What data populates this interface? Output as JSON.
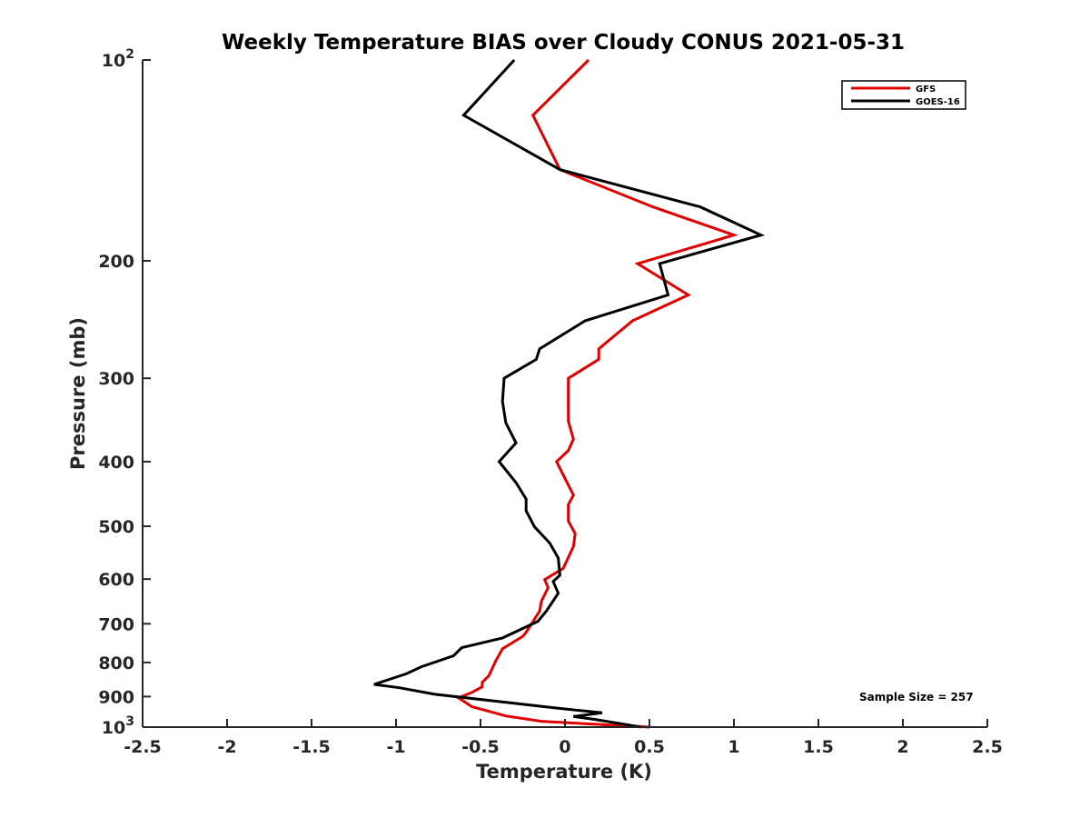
{
  "chart_data": {
    "type": "line",
    "title": "Weekly Temperature BIAS over Cloudy CONUS 2021-05-31",
    "xlabel": "Temperature (K)",
    "ylabel": "Pressure (mb)",
    "xlim": [
      -2.5,
      2.5
    ],
    "ylim": [
      100,
      1000
    ],
    "yscale": "log",
    "yreversed": true,
    "grid": false,
    "legend_position": "top-right",
    "x_ticks": [
      {
        "value": -2.5,
        "label": "-2.5"
      },
      {
        "value": -2,
        "label": "-2"
      },
      {
        "value": -1.5,
        "label": "-1.5"
      },
      {
        "value": -1,
        "label": "-1"
      },
      {
        "value": -0.5,
        "label": "-0.5"
      },
      {
        "value": 0,
        "label": "0"
      },
      {
        "value": 0.5,
        "label": "0.5"
      },
      {
        "value": 1,
        "label": "1"
      },
      {
        "value": 1.5,
        "label": "1.5"
      },
      {
        "value": 2,
        "label": "2"
      },
      {
        "value": 2.5,
        "label": "2.5"
      }
    ],
    "y_ticks": [
      {
        "value": 100,
        "base": "10",
        "exp": "2"
      },
      {
        "value": 200,
        "label": "200"
      },
      {
        "value": 300,
        "label": "300"
      },
      {
        "value": 400,
        "label": "400"
      },
      {
        "value": 500,
        "label": "500"
      },
      {
        "value": 600,
        "label": "600"
      },
      {
        "value": 700,
        "label": "700"
      },
      {
        "value": 800,
        "label": "800"
      },
      {
        "value": 900,
        "label": "900"
      },
      {
        "value": 1000,
        "base": "10",
        "exp": "3"
      }
    ],
    "series": [
      {
        "name": "GFS",
        "color": "#e00000",
        "points": [
          [
            0.14,
            100
          ],
          [
            -0.19,
            121
          ],
          [
            -0.03,
            146
          ],
          [
            0.52,
            166
          ],
          [
            1.0,
            183
          ],
          [
            0.43,
            202
          ],
          [
            0.73,
            225
          ],
          [
            0.4,
            246
          ],
          [
            0.2,
            271
          ],
          [
            0.2,
            281
          ],
          [
            0.02,
            300
          ],
          [
            0.02,
            348
          ],
          [
            0.05,
            370
          ],
          [
            0.02,
            385
          ],
          [
            -0.05,
            400
          ],
          [
            0.05,
            449
          ],
          [
            0.02,
            464
          ],
          [
            0.02,
            491
          ],
          [
            0.06,
            513
          ],
          [
            0.05,
            536
          ],
          [
            -0.01,
            578
          ],
          [
            -0.12,
            601
          ],
          [
            -0.1,
            618
          ],
          [
            -0.14,
            648
          ],
          [
            -0.15,
            670
          ],
          [
            -0.23,
            721
          ],
          [
            -0.25,
            731
          ],
          [
            -0.37,
            763
          ],
          [
            -0.41,
            796
          ],
          [
            -0.45,
            837
          ],
          [
            -0.49,
            857
          ],
          [
            -0.49,
            870
          ],
          [
            -0.55,
            887
          ],
          [
            -0.63,
            904
          ],
          [
            -0.55,
            932
          ],
          [
            -0.35,
            962
          ],
          [
            -0.14,
            980
          ],
          [
            0.5,
            1000
          ]
        ]
      },
      {
        "name": "GOES-16",
        "color": "#000000",
        "points": [
          [
            -0.3,
            100
          ],
          [
            -0.6,
            121
          ],
          [
            -0.03,
            146
          ],
          [
            0.8,
            166
          ],
          [
            1.16,
            183
          ],
          [
            0.56,
            202
          ],
          [
            0.61,
            225
          ],
          [
            0.12,
            246
          ],
          [
            -0.15,
            271
          ],
          [
            -0.17,
            281
          ],
          [
            -0.36,
            300
          ],
          [
            -0.37,
            325
          ],
          [
            -0.35,
            350
          ],
          [
            -0.29,
            375
          ],
          [
            -0.39,
            400
          ],
          [
            -0.29,
            430
          ],
          [
            -0.23,
            455
          ],
          [
            -0.23,
            474
          ],
          [
            -0.18,
            501
          ],
          [
            -0.09,
            530
          ],
          [
            -0.04,
            558
          ],
          [
            -0.03,
            592
          ],
          [
            -0.07,
            605
          ],
          [
            -0.04,
            630
          ],
          [
            -0.11,
            670
          ],
          [
            -0.16,
            694
          ],
          [
            -0.37,
            735
          ],
          [
            -0.61,
            760
          ],
          [
            -0.66,
            782
          ],
          [
            -0.85,
            812
          ],
          [
            -0.94,
            832
          ],
          [
            -1.13,
            863
          ],
          [
            -0.98,
            873
          ],
          [
            -0.77,
            893
          ],
          [
            -0.07,
            935
          ],
          [
            0.22,
            952
          ],
          [
            0.05,
            964
          ],
          [
            0.18,
            974
          ],
          [
            0.45,
            1000
          ]
        ]
      }
    ],
    "annotation": "Sample Size = 257"
  }
}
